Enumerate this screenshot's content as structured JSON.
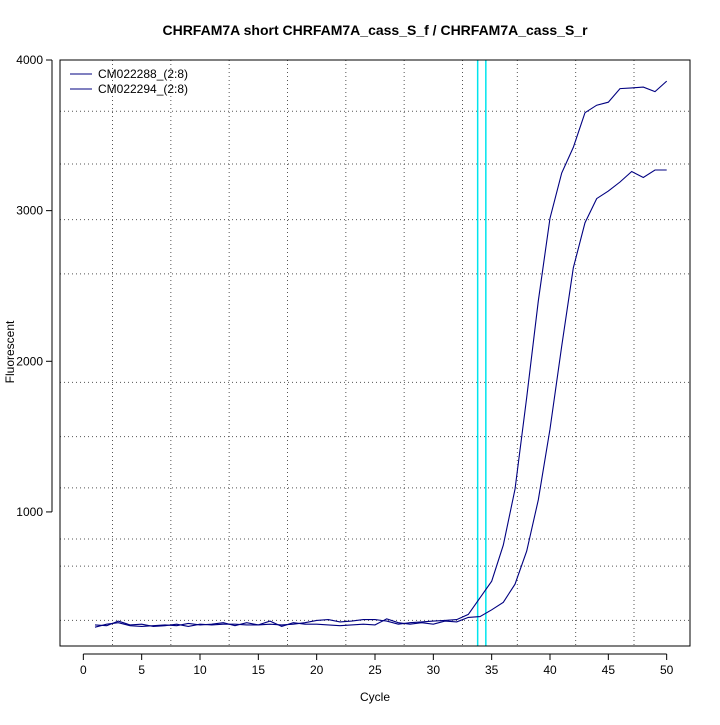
{
  "chart_data": {
    "type": "line",
    "title": "CHRFAM7A short CHRFAM7A_cass_S_f / CHRFAM7A_cass_S_r",
    "xlabel": "Cycle",
    "ylabel": "Fluorescent",
    "xlim": [
      -2,
      52
    ],
    "ylim": [
      110,
      4000
    ],
    "x_ticks": [
      0,
      5,
      10,
      15,
      20,
      25,
      30,
      35,
      40,
      45,
      50
    ],
    "y_ticks": [
      1000,
      2000,
      3000,
      4000
    ],
    "x_grid": [
      2.5,
      7.5,
      12.5,
      17.5,
      22.5,
      27.5,
      32.5,
      37.2,
      42.2,
      47.2
    ],
    "y_grid": [
      280,
      640,
      820,
      1160,
      1500,
      1860,
      2580,
      2940,
      3310,
      3660
    ],
    "grid": true,
    "grid_color": "#555555",
    "legend_position": "top-left",
    "threshold_lines": [
      33.8,
      34.5
    ],
    "threshold_color": "#00e5ee",
    "x": [
      1,
      2,
      3,
      4,
      5,
      6,
      7,
      8,
      9,
      10,
      11,
      12,
      13,
      14,
      15,
      16,
      17,
      18,
      19,
      20,
      21,
      22,
      23,
      24,
      25,
      26,
      27,
      28,
      29,
      30,
      31,
      32,
      33,
      34,
      35,
      36,
      37,
      38,
      39,
      40,
      41,
      42,
      43,
      44,
      45,
      46,
      47,
      48,
      49,
      50
    ],
    "series": [
      {
        "name": "CM022288_(2:8)",
        "color": "#000080",
        "values": [
          235,
          255,
          265,
          245,
          240,
          245,
          250,
          245,
          260,
          250,
          255,
          265,
          245,
          265,
          250,
          255,
          250,
          255,
          265,
          280,
          285,
          270,
          275,
          285,
          285,
          275,
          255,
          265,
          270,
          275,
          280,
          285,
          320,
          430,
          540,
          780,
          1150,
          1760,
          2400,
          2950,
          3250,
          3420,
          3650,
          3700,
          3720,
          3810,
          3815,
          3820,
          3790,
          3860
        ]
      },
      {
        "name": "CM022294_(2:8)",
        "color": "#000080",
        "values": [
          250,
          245,
          275,
          250,
          255,
          240,
          245,
          255,
          240,
          255,
          250,
          255,
          255,
          250,
          250,
          275,
          240,
          265,
          255,
          255,
          250,
          245,
          250,
          255,
          250,
          290,
          265,
          255,
          265,
          255,
          275,
          270,
          300,
          305,
          350,
          400,
          520,
          740,
          1080,
          1550,
          2100,
          2620,
          2920,
          3080,
          3130,
          3190,
          3260,
          3220,
          3270,
          3270
        ]
      }
    ]
  }
}
